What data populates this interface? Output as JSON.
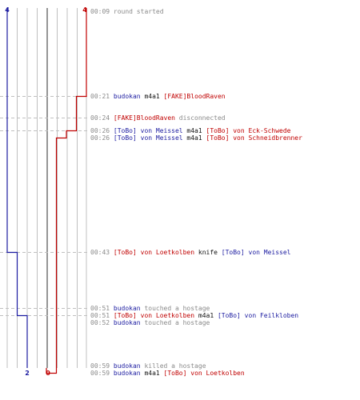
{
  "colors": {
    "blue_team": "#1b1ba0",
    "red_team": "#c00000",
    "neutral_action": "#111111",
    "muted": "#8a8a8a",
    "grid": "#c0c0c0",
    "center_line": "#6a6a6a",
    "dashed_guide": "#c0c0c0"
  },
  "score": {
    "blue_start": "4",
    "red_start": "4",
    "blue_end": "2",
    "red_end": "0"
  },
  "events": [
    {
      "time": "00:09",
      "parts": [
        {
          "t": "round started",
          "c": "gray"
        }
      ]
    },
    {
      "time": "00:21",
      "parts": [
        {
          "t": "budokan",
          "c": "blue"
        },
        {
          "t": " m4a1 ",
          "c": "dark"
        },
        {
          "t": "[FAKE]BloodRaven",
          "c": "red"
        }
      ]
    },
    {
      "time": "00:24",
      "parts": [
        {
          "t": "[FAKE]BloodRaven",
          "c": "red"
        },
        {
          "t": " disconnected",
          "c": "gray"
        }
      ]
    },
    {
      "time": "00:26",
      "parts": [
        {
          "t": "[ToBo] von Meissel",
          "c": "blue"
        },
        {
          "t": " m4a1 ",
          "c": "dark"
        },
        {
          "t": "[ToBo] von Eck-Schwede",
          "c": "red"
        }
      ]
    },
    {
      "time": "00:26",
      "parts": [
        {
          "t": "[ToBo] von Meissel",
          "c": "blue"
        },
        {
          "t": " m4a1 ",
          "c": "dark"
        },
        {
          "t": "[ToBo] von Schneidbrenner",
          "c": "red"
        }
      ]
    },
    {
      "time": "00:43",
      "parts": [
        {
          "t": "[ToBo] von Loetkolben",
          "c": "red"
        },
        {
          "t": " knife ",
          "c": "dark"
        },
        {
          "t": "[ToBo] von Meissel",
          "c": "blue"
        }
      ]
    },
    {
      "time": "00:51",
      "parts": [
        {
          "t": "budokan",
          "c": "blue"
        },
        {
          "t": " touched a hostage",
          "c": "gray"
        }
      ]
    },
    {
      "time": "00:51",
      "parts": [
        {
          "t": "[ToBo] von Loetkolben",
          "c": "red"
        },
        {
          "t": " m4a1 ",
          "c": "dark"
        },
        {
          "t": "[ToBo] von Feilkloben",
          "c": "blue"
        }
      ]
    },
    {
      "time": "00:52",
      "parts": [
        {
          "t": "budokan",
          "c": "blue"
        },
        {
          "t": " touched a hostage",
          "c": "gray"
        }
      ]
    },
    {
      "time": "00:59",
      "parts": [
        {
          "t": "budokan",
          "c": "blue"
        },
        {
          "t": " killed a hostage",
          "c": "gray"
        }
      ]
    },
    {
      "time": "00:59",
      "parts": [
        {
          "t": "budokan",
          "c": "blue"
        },
        {
          "t": " m4a1 ",
          "c": "dark"
        },
        {
          "t": "[ToBo] von Loetkolben",
          "c": "red"
        }
      ]
    }
  ],
  "alive_steps": {
    "blue": [
      {
        "after_event": 0,
        "alive": 4
      },
      {
        "after_event": 5,
        "alive": 3
      },
      {
        "after_event": 7,
        "alive": 2
      }
    ],
    "red": [
      {
        "after_event": 0,
        "alive": 4
      },
      {
        "after_event": 1,
        "alive": 3
      },
      {
        "after_event": 3,
        "alive": 2
      },
      {
        "after_event": 4,
        "alive": 1
      },
      {
        "after_event": 10,
        "alive": 0
      }
    ]
  }
}
